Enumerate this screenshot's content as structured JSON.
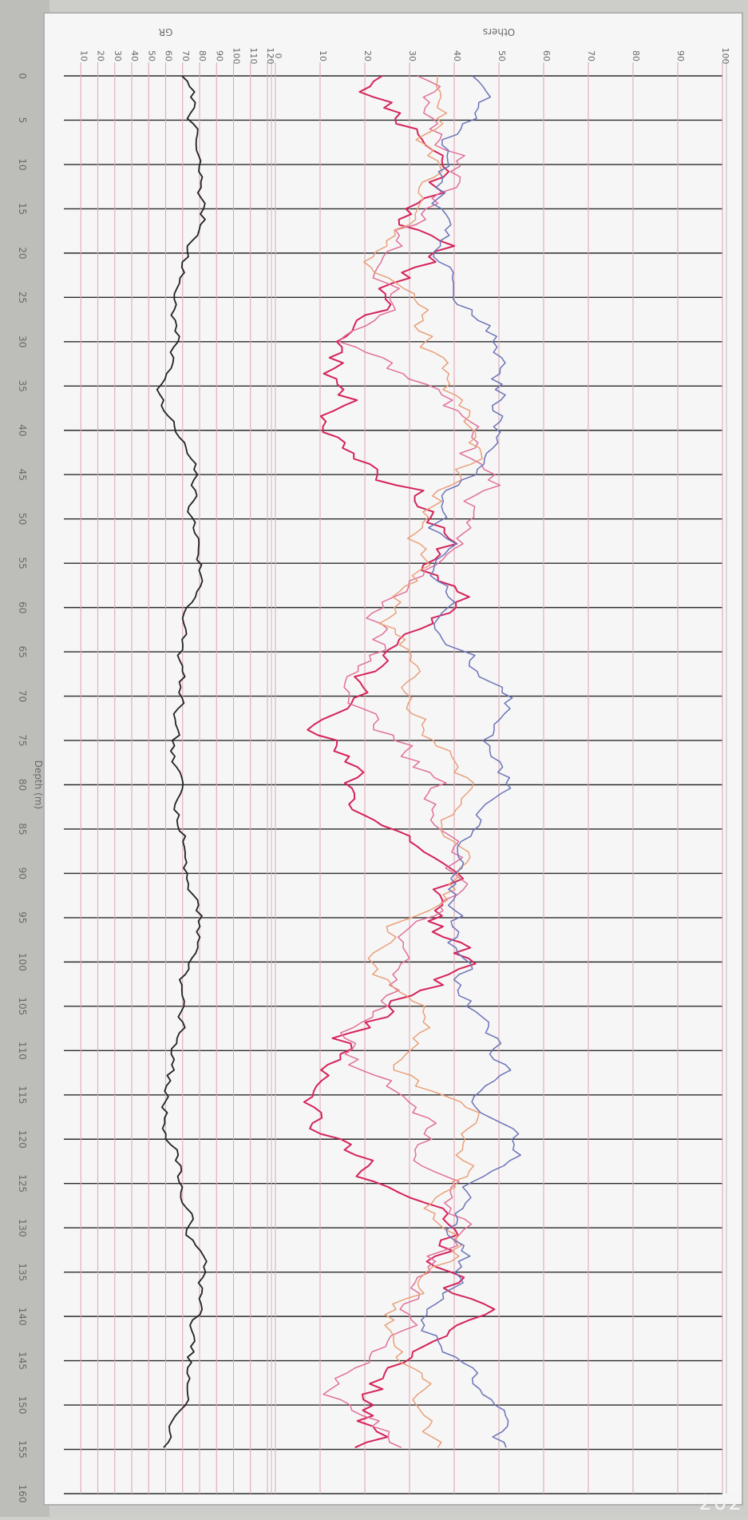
{
  "chart_data": {
    "type": "line",
    "orientation": "rotated",
    "depth_label": "Depth (m)",
    "depth_ticks": [
      "0",
      "5",
      "10",
      "15",
      "20",
      "25",
      "30",
      "35",
      "40",
      "45",
      "50",
      "55",
      "60",
      "65",
      "70",
      "75",
      "80",
      "85",
      "90",
      "95",
      "100",
      "105",
      "110",
      "115",
      "120",
      "125",
      "130",
      "135",
      "140",
      "145",
      "150",
      "155",
      "160"
    ],
    "depth_range": [
      0,
      160
    ],
    "panels": [
      {
        "title": "GR",
        "ticks": [
          "10",
          "20",
          "30",
          "40",
          "50",
          "60",
          "70",
          "80",
          "90",
          "100",
          "110",
          "120"
        ],
        "range": [
          0,
          120
        ],
        "series": [
          {
            "name": "",
            "color": "#222222"
          }
        ]
      },
      {
        "title": "Others",
        "ticks": [
          "0",
          "10",
          "20",
          "30",
          "40",
          "50",
          "60",
          "70",
          "80",
          "90",
          "100"
        ],
        "range": [
          0,
          100
        ],
        "series": [
          {
            "name": "",
            "color": "#d4245a"
          },
          {
            "name": "",
            "color": "#e0709a"
          },
          {
            "name": "",
            "color": "#e8a07a"
          },
          {
            "name": "",
            "color": "#6a74b8"
          }
        ]
      }
    ],
    "grid": true
  },
  "watermark": "202"
}
